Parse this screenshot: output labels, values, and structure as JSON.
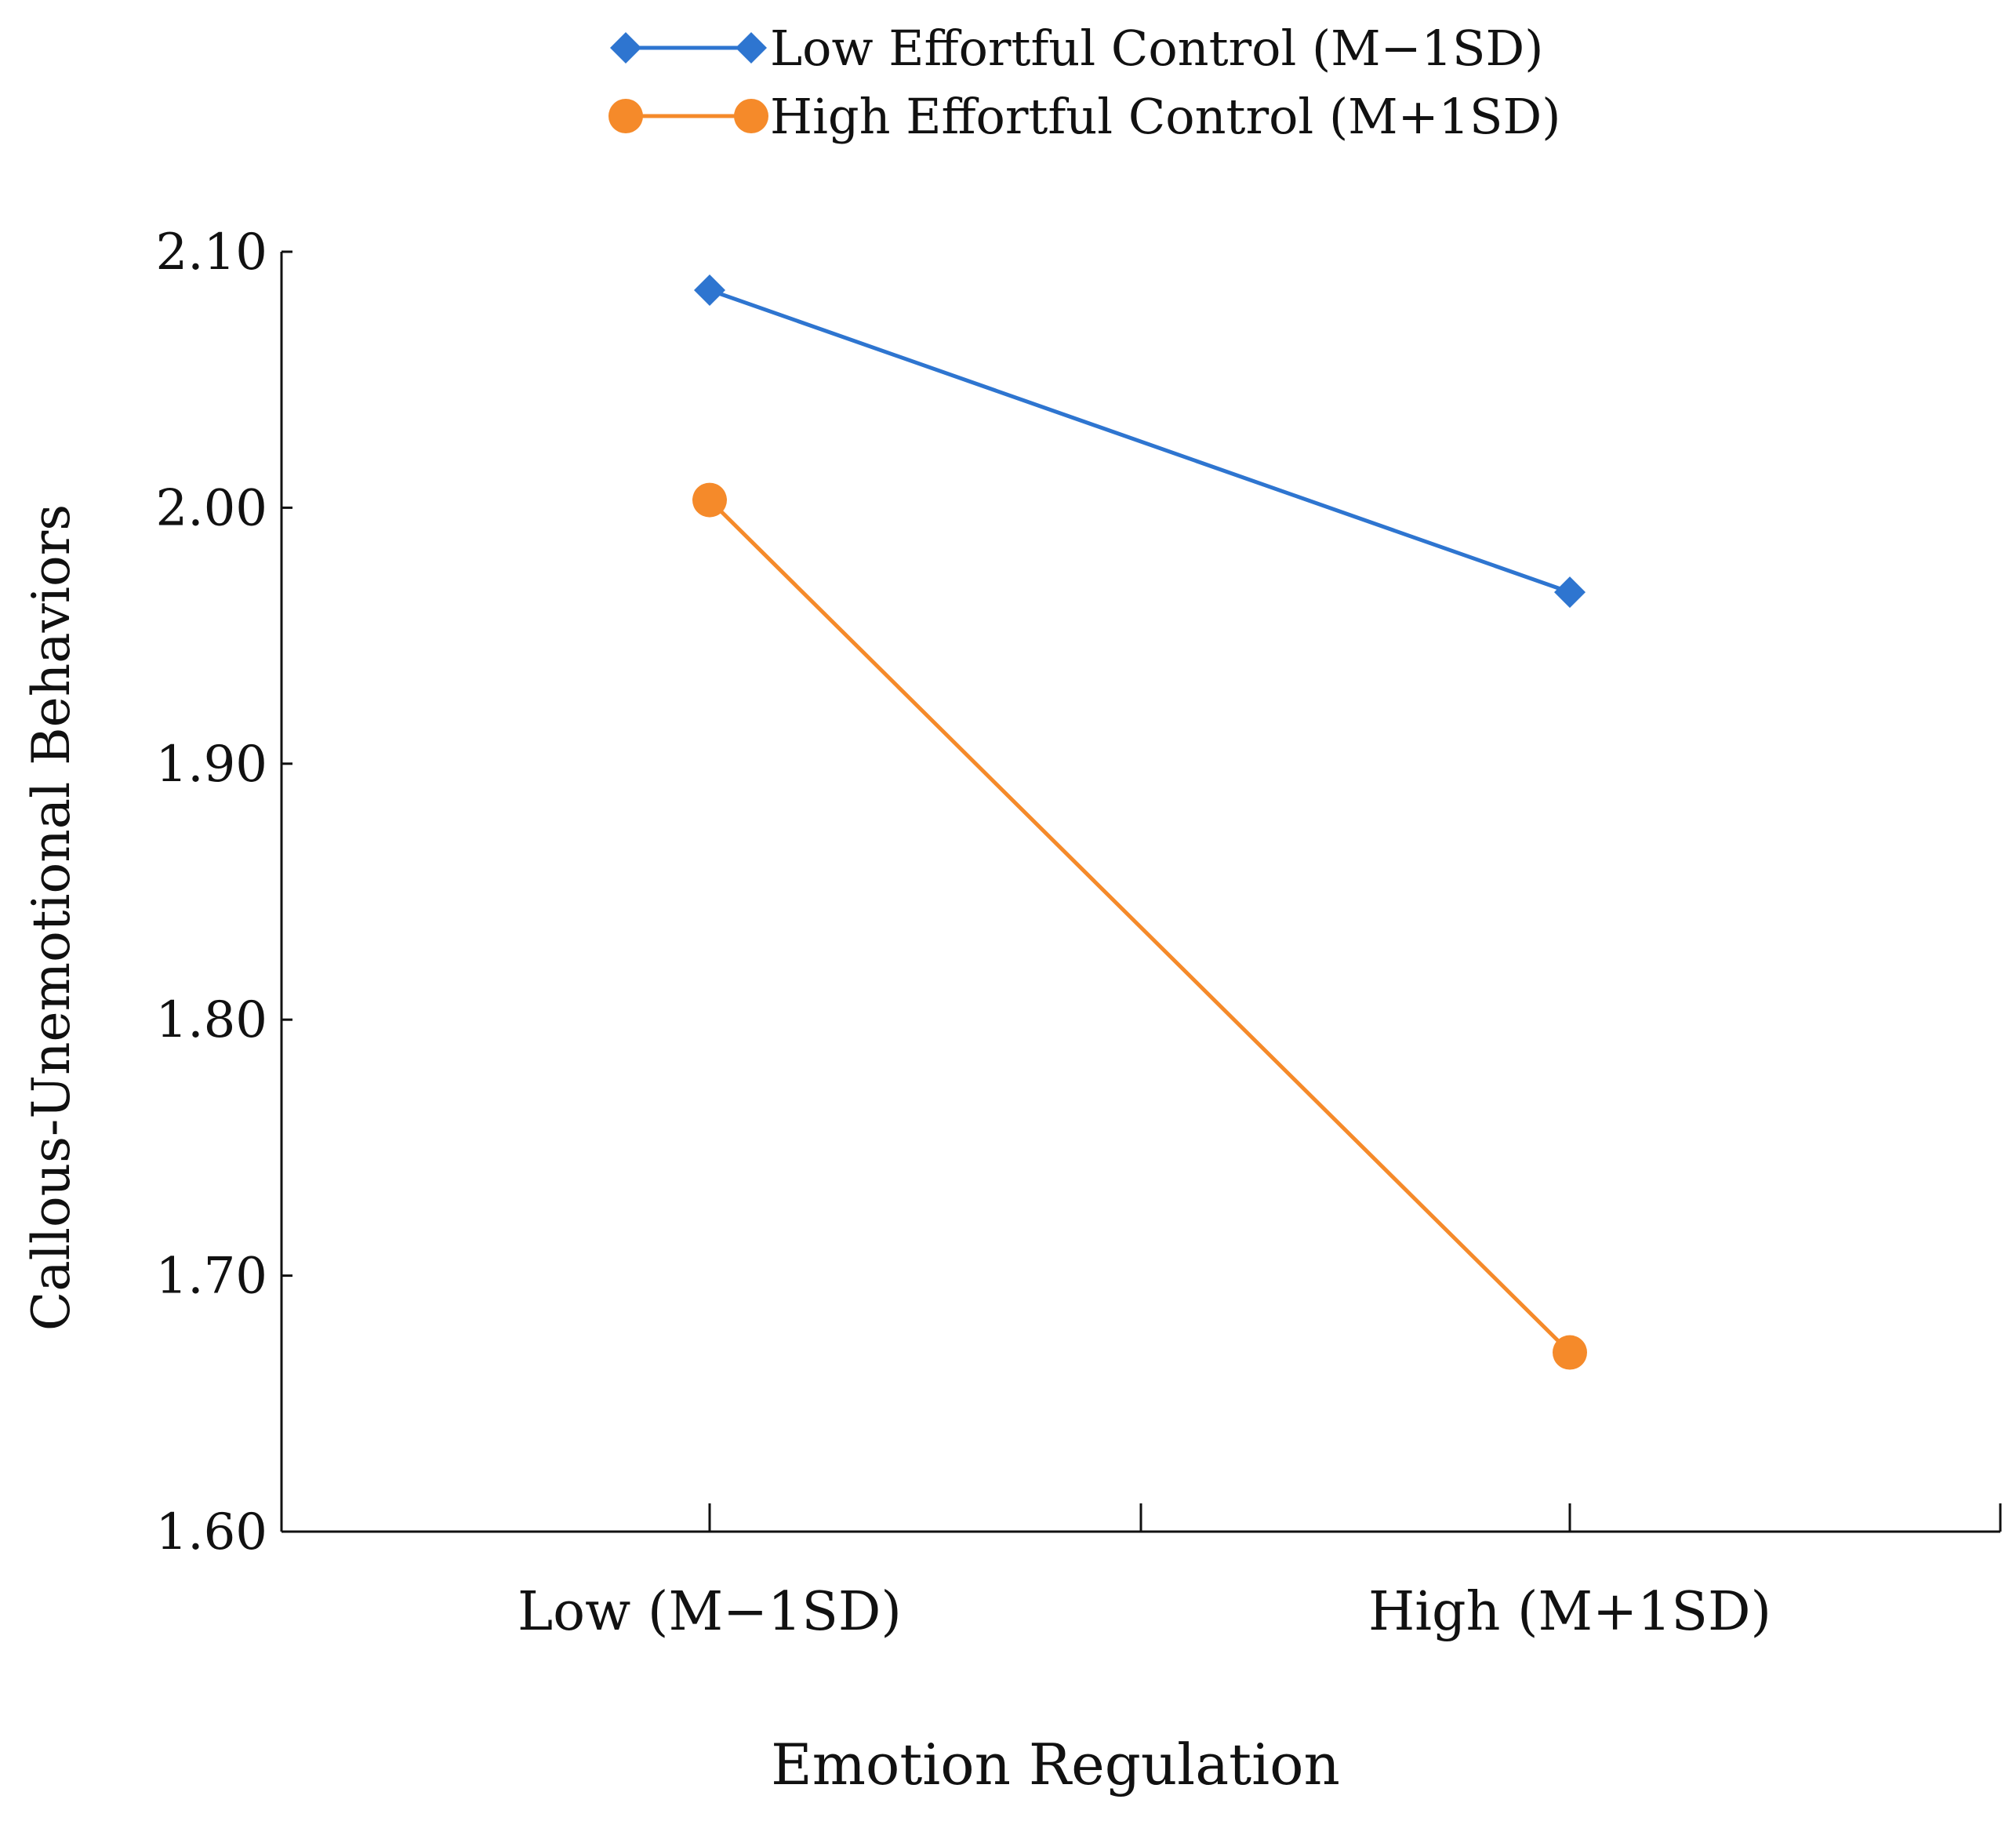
{
  "chart_data": {
    "type": "line",
    "title": "",
    "xlabel": "Emotion Regulation",
    "ylabel": "Callous-Unemotional Behaviors",
    "categories": [
      "Low (M−1SD)",
      "High (M+1SD)"
    ],
    "ylim": [
      1.6,
      2.1
    ],
    "yticks": [
      "1.60",
      "1.70",
      "1.80",
      "1.90",
      "2.00",
      "2.10"
    ],
    "grid": false,
    "legend_position": "top-center",
    "series": [
      {
        "name": "Low Effortful Control (M−1SD)",
        "values": [
          2.085,
          1.967
        ],
        "color": "#2e75d0",
        "marker": "diamond"
      },
      {
        "name": "High Effortful Control (M+1SD)",
        "values": [
          2.003,
          1.67
        ],
        "color": "#f58a2a",
        "marker": "circle"
      }
    ]
  }
}
